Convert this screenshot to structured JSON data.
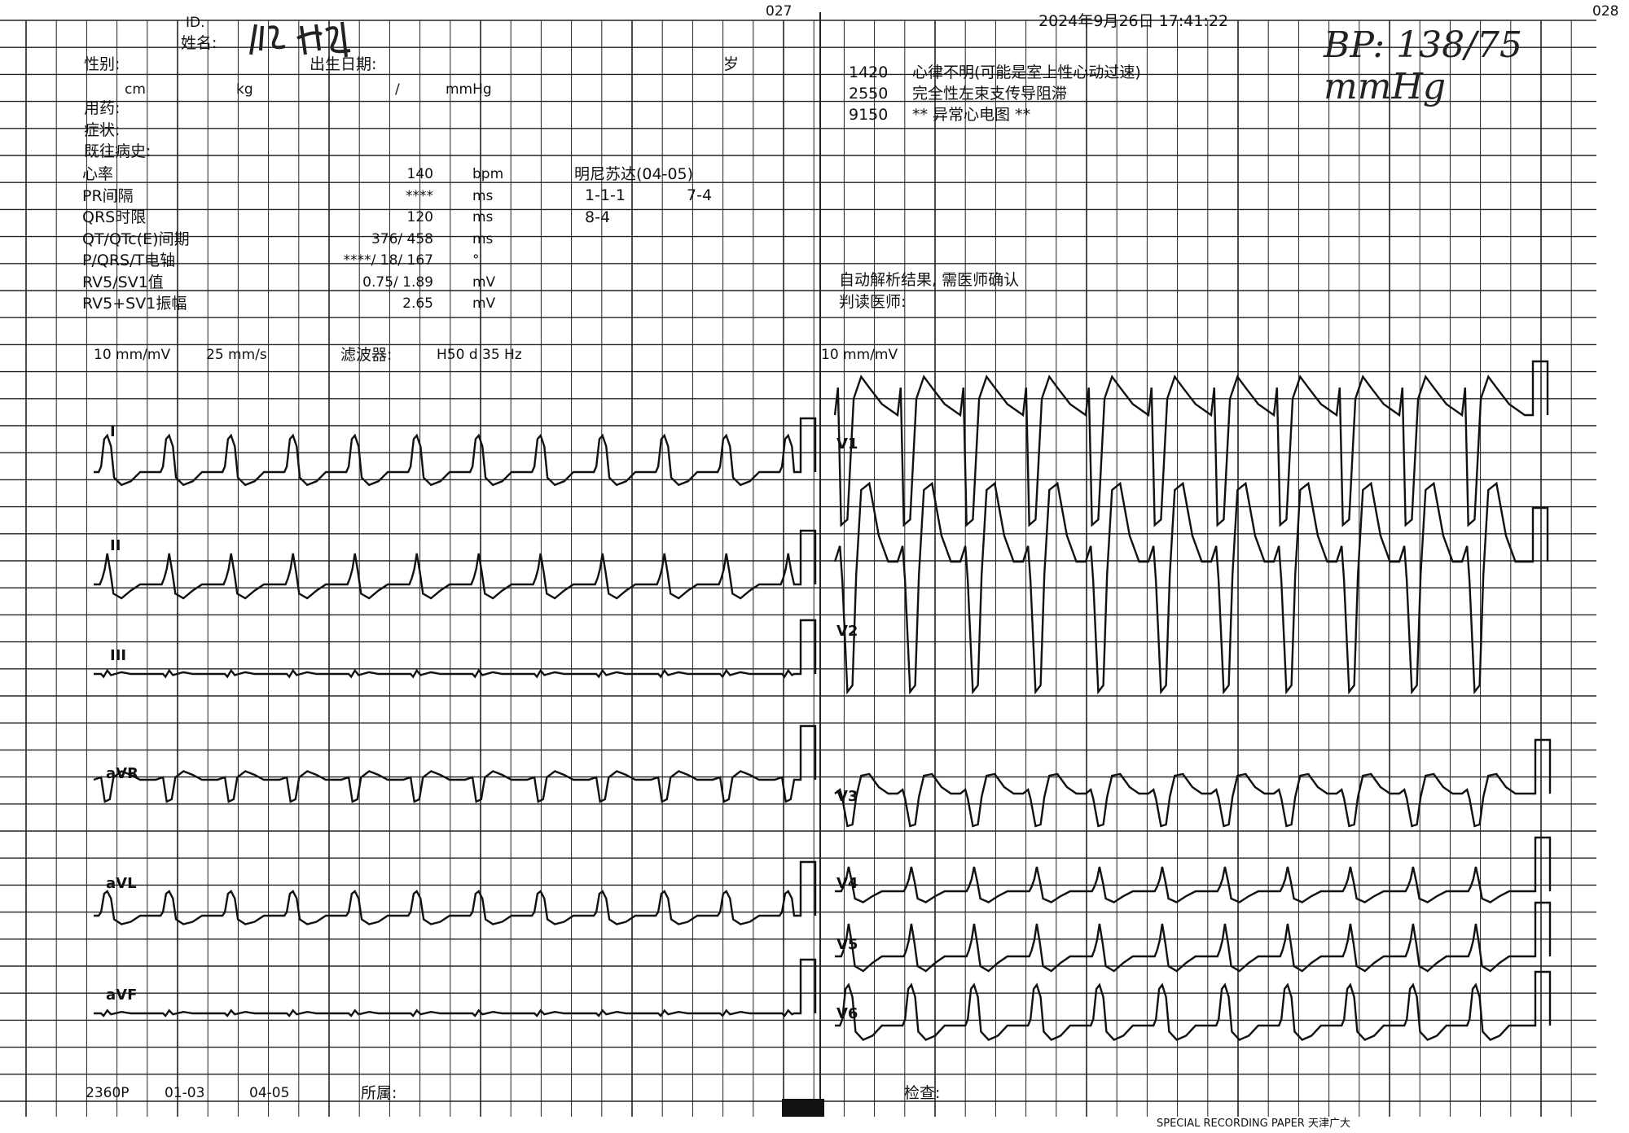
{
  "header": {
    "page_left": "027",
    "page_right": "028",
    "datetime": "2024年9月26日 17:41:22"
  },
  "patient": {
    "id_label": "ID.",
    "name_label": "姓名:",
    "sex_label": "性别:",
    "birth_label": "出生日期:",
    "age_unit": "岁",
    "height_unit": "cm",
    "weight_unit": "kg",
    "bp_sep": "/",
    "bp_unit": "mmHg",
    "medication_label": "用药:",
    "symptom_label": "症状:",
    "history_label": "既往病史:"
  },
  "measurements": [
    {
      "label": "心率",
      "value": "140",
      "unit": "bpm"
    },
    {
      "label": "PR间隔",
      "value": "****",
      "unit": "ms"
    },
    {
      "label": "QRS时限",
      "value": "120",
      "unit": "ms"
    },
    {
      "label": "QT/QTc(E)间期",
      "value": "376/ 458",
      "unit": "ms"
    },
    {
      "label": "P/QRS/T电轴",
      "value": "****/  18/ 167",
      "unit": "°"
    },
    {
      "label": "RV5/SV1值",
      "value": "0.75/ 1.89",
      "unit": "mV"
    },
    {
      "label": "RV5+SV1振幅",
      "value": "2.65",
      "unit": "mV"
    }
  ],
  "minnesota": {
    "title": "明尼苏达(04-05)",
    "codes": [
      "1-1-1",
      "7-4",
      "8-4"
    ]
  },
  "diagnosis": [
    {
      "code": "1420",
      "text": "心律不明(可能是室上性心动过速)"
    },
    {
      "code": "2550",
      "text": "完全性左束支传导阻滞"
    },
    {
      "code": "9150",
      "text": "**   异常心电图   **"
    }
  ],
  "notice": "自动解析结果, 需医师确认",
  "reader_label": "判读医师:",
  "handwritten_note": "BP: 138/75 mmHg",
  "settings": {
    "gain": "10 mm/mV",
    "speed": "25 mm/s",
    "filter_label": "滤波器:",
    "filter_value": "H50  d  35 Hz",
    "gain_right": "10 mm/mV"
  },
  "leads_left": [
    "I",
    "II",
    "III",
    "aVR",
    "aVL",
    "aVF"
  ],
  "leads_right": [
    "V1",
    "V2",
    "V3",
    "V4",
    "V5",
    "V6"
  ],
  "footer": {
    "code": "2360P",
    "range1": "01-03",
    "range2": "04-05",
    "dept_label": "所属:",
    "exam_label": "检查:",
    "paper_text": "SPECIAL RECORDING PAPER 天津广大"
  },
  "colors": {
    "grid": "#222222",
    "trace": "#111111"
  }
}
